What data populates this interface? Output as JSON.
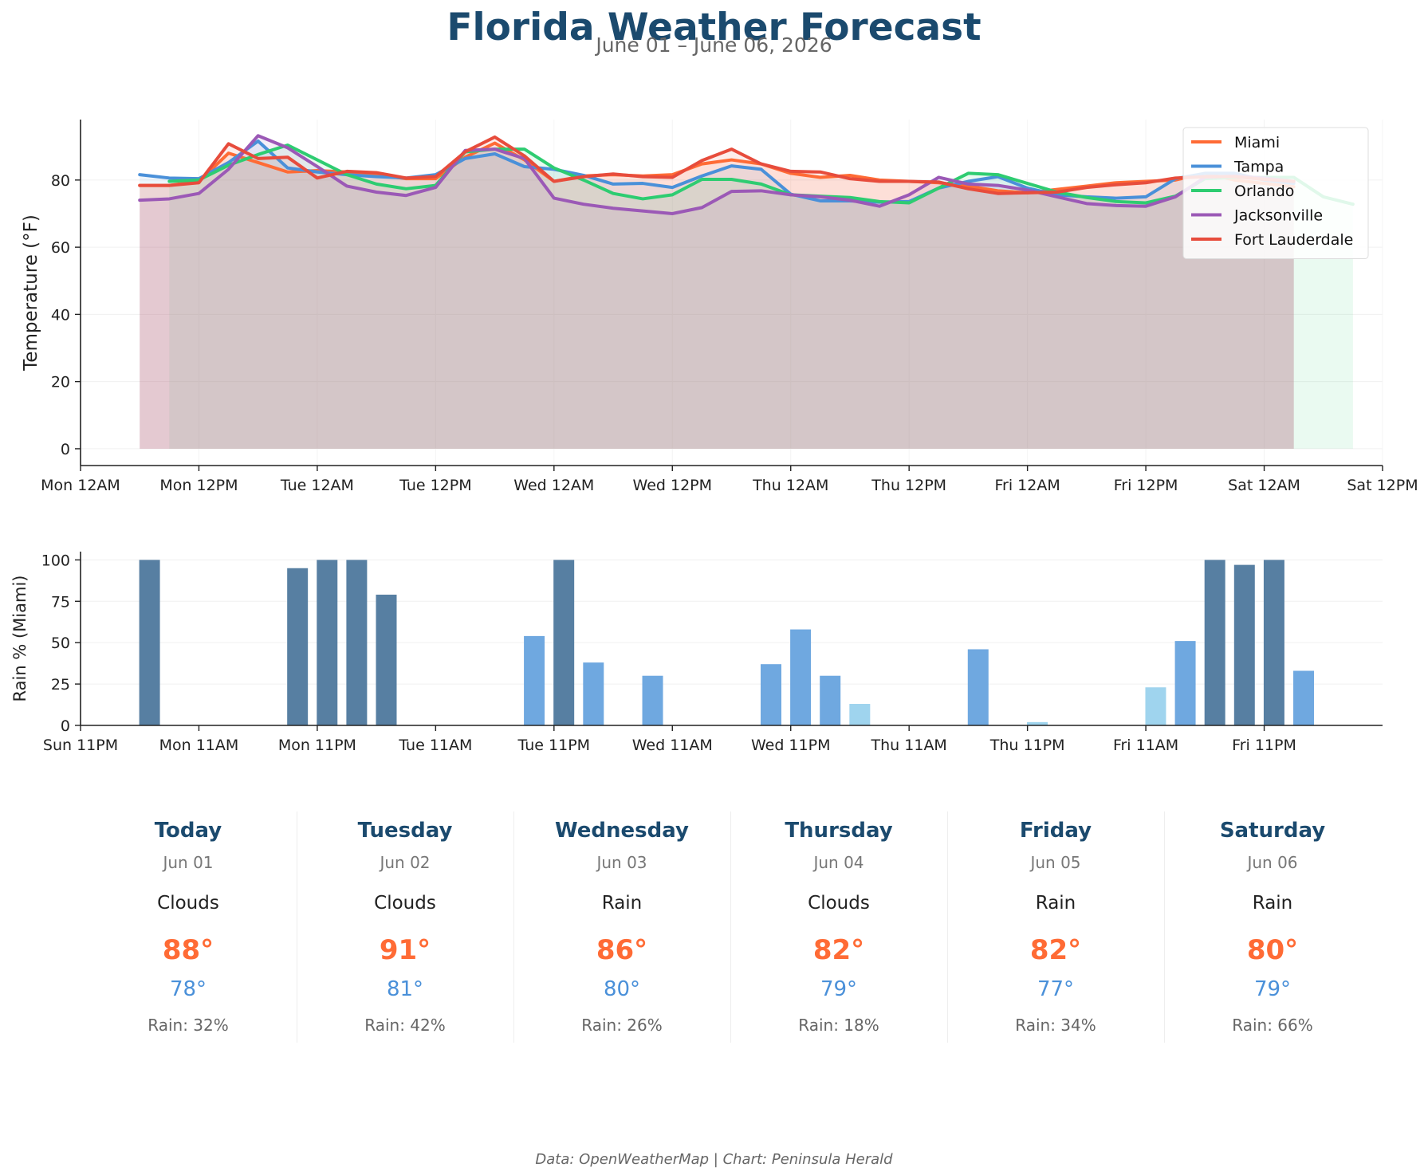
{
  "header": {
    "title": "Florida Weather Forecast",
    "subtitle": "June 01 – June 06, 2026"
  },
  "chart_data": [
    {
      "type": "line",
      "title": "",
      "xlabel": "",
      "ylabel": "Temperature (°F)",
      "x_unit": "hours from Mon 12AM (Jun 01)",
      "x_ticks": [
        "Mon 12AM",
        "Mon 12PM",
        "Tue 12AM",
        "Tue 12PM",
        "Wed 12AM",
        "Wed 12PM",
        "Thu 12AM",
        "Thu 12PM",
        "Fri 12AM",
        "Fri 12PM",
        "Sat 12AM",
        "Sat 12PM"
      ],
      "xlim": [
        0,
        132
      ],
      "ylim": [
        -5,
        98
      ],
      "y_ticks": [
        0,
        20,
        40,
        60,
        80
      ],
      "grid": true,
      "legend": "top-right",
      "series": [
        {
          "name": "Miami",
          "color": "#ff6b35",
          "points": [
            [
              6,
              78.4
            ],
            [
              9,
              78.4
            ],
            [
              12,
              79.6
            ],
            [
              15,
              88.0
            ],
            [
              18,
              85.2
            ],
            [
              21,
              82.4
            ],
            [
              24,
              82.8
            ],
            [
              27,
              82.4
            ],
            [
              30,
              81.6
            ],
            [
              33,
              80.4
            ],
            [
              36,
              80.4
            ],
            [
              39,
              86.8
            ],
            [
              42,
              91.0
            ],
            [
              45,
              86.0
            ],
            [
              48,
              79.6
            ],
            [
              51,
              81.2
            ],
            [
              54,
              81.6
            ],
            [
              57,
              81.2
            ],
            [
              60,
              81.6
            ],
            [
              63,
              84.8
            ],
            [
              66,
              86.0
            ],
            [
              69,
              84.8
            ],
            [
              72,
              82.0
            ],
            [
              75,
              80.8
            ],
            [
              78,
              81.4
            ],
            [
              81,
              80.0
            ],
            [
              84,
              79.6
            ],
            [
              87,
              79.2
            ],
            [
              90,
              78.2
            ],
            [
              93,
              76.8
            ],
            [
              96,
              76.2
            ],
            [
              99,
              77.2
            ],
            [
              102,
              78.2
            ],
            [
              105,
              79.2
            ],
            [
              108,
              79.6
            ],
            [
              111,
              80.0
            ],
            [
              114,
              82.0
            ],
            [
              117,
              80.0
            ],
            [
              120,
              79.0
            ],
            [
              123,
              78.0
            ]
          ]
        },
        {
          "name": "Tampa",
          "color": "#4a90d9",
          "points": [
            [
              6,
              81.6
            ],
            [
              9,
              80.6
            ],
            [
              12,
              80.4
            ],
            [
              15,
              85.2
            ],
            [
              18,
              91.6
            ],
            [
              21,
              83.6
            ],
            [
              24,
              82.4
            ],
            [
              27,
              81.6
            ],
            [
              30,
              81.0
            ],
            [
              33,
              80.6
            ],
            [
              36,
              81.6
            ],
            [
              39,
              86.4
            ],
            [
              42,
              87.8
            ],
            [
              45,
              84.0
            ],
            [
              48,
              83.2
            ],
            [
              51,
              81.4
            ],
            [
              54,
              78.8
            ],
            [
              57,
              79.0
            ],
            [
              60,
              77.8
            ],
            [
              63,
              81.2
            ],
            [
              66,
              84.2
            ],
            [
              69,
              83.2
            ],
            [
              72,
              75.8
            ],
            [
              75,
              73.8
            ],
            [
              78,
              73.8
            ],
            [
              81,
              73.4
            ],
            [
              84,
              73.6
            ],
            [
              87,
              77.6
            ],
            [
              90,
              79.6
            ],
            [
              93,
              81.0
            ],
            [
              96,
              77.6
            ],
            [
              99,
              75.6
            ],
            [
              102,
              75.0
            ],
            [
              105,
              74.6
            ],
            [
              108,
              75.0
            ],
            [
              111,
              80.4
            ],
            [
              114,
              82.0
            ],
            [
              117,
              82.0
            ],
            [
              120,
              80.0
            ],
            [
              123,
              79.0
            ]
          ]
        },
        {
          "name": "Orlando",
          "color": "#2ecc71",
          "points": [
            [
              9,
              79.6
            ],
            [
              12,
              80.0
            ],
            [
              15,
              84.4
            ],
            [
              18,
              87.6
            ],
            [
              21,
              90.4
            ],
            [
              24,
              86.0
            ],
            [
              27,
              81.6
            ],
            [
              30,
              78.8
            ],
            [
              33,
              77.4
            ],
            [
              36,
              78.4
            ],
            [
              39,
              88.4
            ],
            [
              42,
              89.2
            ],
            [
              45,
              89.2
            ],
            [
              48,
              83.6
            ],
            [
              51,
              80.0
            ],
            [
              54,
              76.0
            ],
            [
              57,
              74.4
            ],
            [
              60,
              75.6
            ],
            [
              63,
              80.2
            ],
            [
              66,
              80.2
            ],
            [
              69,
              78.8
            ],
            [
              72,
              75.6
            ],
            [
              75,
              75.2
            ],
            [
              78,
              74.8
            ],
            [
              81,
              73.6
            ],
            [
              84,
              73.2
            ],
            [
              87,
              77.6
            ],
            [
              90,
              82.0
            ],
            [
              93,
              81.6
            ],
            [
              96,
              79.0
            ],
            [
              99,
              76.4
            ],
            [
              102,
              74.8
            ],
            [
              105,
              73.6
            ],
            [
              108,
              73.2
            ],
            [
              111,
              75.2
            ],
            [
              114,
              80.4
            ],
            [
              117,
              80.8
            ],
            [
              120,
              80.8
            ],
            [
              123,
              80.8
            ],
            [
              126,
              75.0
            ],
            [
              129,
              72.8
            ]
          ]
        },
        {
          "name": "Jacksonville",
          "color": "#9b59b6",
          "points": [
            [
              6,
              74.0
            ],
            [
              9,
              74.4
            ],
            [
              12,
              76.0
            ],
            [
              15,
              83.2
            ],
            [
              18,
              93.2
            ],
            [
              21,
              89.6
            ],
            [
              24,
              84.0
            ],
            [
              27,
              78.2
            ],
            [
              30,
              76.4
            ],
            [
              33,
              75.4
            ],
            [
              36,
              77.8
            ],
            [
              39,
              88.8
            ],
            [
              42,
              89.2
            ],
            [
              45,
              86.4
            ],
            [
              48,
              74.6
            ],
            [
              51,
              72.8
            ],
            [
              54,
              71.6
            ],
            [
              57,
              70.8
            ],
            [
              60,
              70.0
            ],
            [
              63,
              71.8
            ],
            [
              66,
              76.6
            ],
            [
              69,
              76.8
            ],
            [
              72,
              75.6
            ],
            [
              75,
              75.0
            ],
            [
              78,
              74.0
            ],
            [
              81,
              72.2
            ],
            [
              84,
              75.6
            ],
            [
              87,
              80.8
            ],
            [
              90,
              78.8
            ],
            [
              93,
              78.4
            ],
            [
              96,
              77.0
            ],
            [
              99,
              75.0
            ],
            [
              102,
              73.0
            ],
            [
              105,
              72.4
            ],
            [
              108,
              72.2
            ],
            [
              111,
              75.0
            ],
            [
              114,
              80.8
            ],
            [
              117,
              81.2
            ],
            [
              120,
              80.6
            ],
            [
              123,
              79.6
            ]
          ]
        },
        {
          "name": "Fort Lauderdale",
          "color": "#e74c3c",
          "points": [
            [
              6,
              78.4
            ],
            [
              9,
              78.4
            ],
            [
              12,
              79.2
            ],
            [
              15,
              90.8
            ],
            [
              18,
              86.4
            ],
            [
              21,
              86.8
            ],
            [
              24,
              80.6
            ],
            [
              27,
              82.6
            ],
            [
              30,
              82.2
            ],
            [
              33,
              80.6
            ],
            [
              36,
              81.0
            ],
            [
              39,
              88.4
            ],
            [
              42,
              92.8
            ],
            [
              45,
              87.2
            ],
            [
              48,
              79.6
            ],
            [
              51,
              81.0
            ],
            [
              54,
              81.8
            ],
            [
              57,
              81.0
            ],
            [
              60,
              80.8
            ],
            [
              63,
              85.8
            ],
            [
              66,
              89.2
            ],
            [
              69,
              84.8
            ],
            [
              72,
              82.6
            ],
            [
              75,
              82.4
            ],
            [
              78,
              80.4
            ],
            [
              81,
              79.6
            ],
            [
              84,
              79.6
            ],
            [
              87,
              79.4
            ],
            [
              90,
              77.4
            ],
            [
              93,
              76.0
            ],
            [
              96,
              76.2
            ],
            [
              99,
              76.4
            ],
            [
              102,
              77.8
            ],
            [
              105,
              78.6
            ],
            [
              108,
              79.2
            ],
            [
              111,
              80.6
            ],
            [
              114,
              81.0
            ],
            [
              117,
              81.0
            ],
            [
              120,
              80.2
            ],
            [
              123,
              79.6
            ]
          ]
        }
      ]
    },
    {
      "type": "bar",
      "title": "",
      "xlabel": "",
      "ylabel": "Rain % (Miami)",
      "x_unit": "hours from Sun 11PM (May 31)",
      "x_ticks": [
        "Sun 11PM",
        "Mon 11AM",
        "Mon 11PM",
        "Tue 11AM",
        "Tue 11PM",
        "Wed 11AM",
        "Wed 11PM",
        "Thu 11AM",
        "Thu 11PM",
        "Fri 11AM",
        "Fri 11PM"
      ],
      "xlim": [
        0,
        132
      ],
      "ylim": [
        0,
        105
      ],
      "y_ticks": [
        0,
        25,
        50,
        75,
        100
      ],
      "grid": true,
      "color_scale": {
        "heavy": "#577fa2",
        "moderate": "#6fa8e0",
        "light": "#9fd4ee"
      },
      "bars": [
        {
          "x": 7,
          "value": 100,
          "level": "heavy"
        },
        {
          "x": 22,
          "value": 95,
          "level": "heavy"
        },
        {
          "x": 25,
          "value": 100,
          "level": "heavy"
        },
        {
          "x": 28,
          "value": 100,
          "level": "heavy"
        },
        {
          "x": 31,
          "value": 79,
          "level": "heavy"
        },
        {
          "x": 46,
          "value": 54,
          "level": "moderate"
        },
        {
          "x": 49,
          "value": 100,
          "level": "heavy"
        },
        {
          "x": 52,
          "value": 38,
          "level": "moderate"
        },
        {
          "x": 58,
          "value": 30,
          "level": "moderate"
        },
        {
          "x": 70,
          "value": 37,
          "level": "moderate"
        },
        {
          "x": 73,
          "value": 58,
          "level": "moderate"
        },
        {
          "x": 76,
          "value": 30,
          "level": "moderate"
        },
        {
          "x": 79,
          "value": 13,
          "level": "light"
        },
        {
          "x": 91,
          "value": 46,
          "level": "moderate"
        },
        {
          "x": 97,
          "value": 2,
          "level": "light"
        },
        {
          "x": 109,
          "value": 23,
          "level": "light"
        },
        {
          "x": 112,
          "value": 51,
          "level": "moderate"
        },
        {
          "x": 115,
          "value": 100,
          "level": "heavy"
        },
        {
          "x": 118,
          "value": 97,
          "level": "heavy"
        },
        {
          "x": 121,
          "value": 100,
          "level": "heavy"
        },
        {
          "x": 124,
          "value": 33,
          "level": "moderate"
        }
      ]
    }
  ],
  "forecast": {
    "days": [
      {
        "name": "Today",
        "date": "Jun 01",
        "condition": "Clouds",
        "high": "88°",
        "low": "78°",
        "rain": "Rain: 32%"
      },
      {
        "name": "Tuesday",
        "date": "Jun 02",
        "condition": "Clouds",
        "high": "91°",
        "low": "81°",
        "rain": "Rain: 42%"
      },
      {
        "name": "Wednesday",
        "date": "Jun 03",
        "condition": "Rain",
        "high": "86°",
        "low": "80°",
        "rain": "Rain: 26%"
      },
      {
        "name": "Thursday",
        "date": "Jun 04",
        "condition": "Clouds",
        "high": "82°",
        "low": "79°",
        "rain": "Rain: 18%"
      },
      {
        "name": "Friday",
        "date": "Jun 05",
        "condition": "Rain",
        "high": "82°",
        "low": "77°",
        "rain": "Rain: 34%"
      },
      {
        "name": "Saturday",
        "date": "Jun 06",
        "condition": "Rain",
        "high": "80°",
        "low": "79°",
        "rain": "Rain: 66%"
      }
    ]
  },
  "footer": {
    "credit": "Data: OpenWeatherMap | Chart: Peninsula Herald"
  }
}
